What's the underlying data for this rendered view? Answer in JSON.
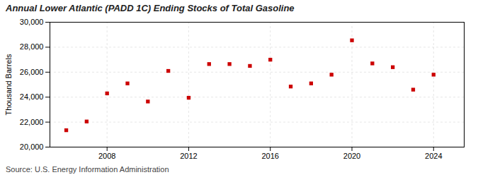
{
  "chart_data": {
    "type": "scatter",
    "title": "Annual Lower Atlantic (PADD 1C) Ending Stocks of Total Gasoline",
    "ylabel": "Thousand Barrels",
    "source": "Source: U.S. Energy Information Administration",
    "x": [
      2006,
      2007,
      2008,
      2009,
      2010,
      2011,
      2012,
      2013,
      2014,
      2015,
      2016,
      2017,
      2018,
      2019,
      2020,
      2021,
      2022,
      2023,
      2024
    ],
    "values": [
      21350,
      22050,
      24300,
      25100,
      23650,
      26100,
      23950,
      26650,
      26650,
      26500,
      27000,
      24850,
      25100,
      25800,
      28550,
      26700,
      26400,
      24600,
      25800
    ],
    "color": "#cc0000",
    "marker": "square",
    "xlim": [
      2005.2,
      2025.5
    ],
    "xticks": [
      2008,
      2012,
      2016,
      2020,
      2024
    ],
    "ylim": [
      20000,
      30000
    ],
    "yticks": [
      {
        "value": 20000,
        "label": "20,000"
      },
      {
        "value": 22000,
        "label": "22,000"
      },
      {
        "value": 24000,
        "label": "24,000"
      },
      {
        "value": 26000,
        "label": "26,000"
      },
      {
        "value": 28000,
        "label": "28,000"
      },
      {
        "value": 30000,
        "label": "30,000"
      }
    ],
    "grid": true
  }
}
